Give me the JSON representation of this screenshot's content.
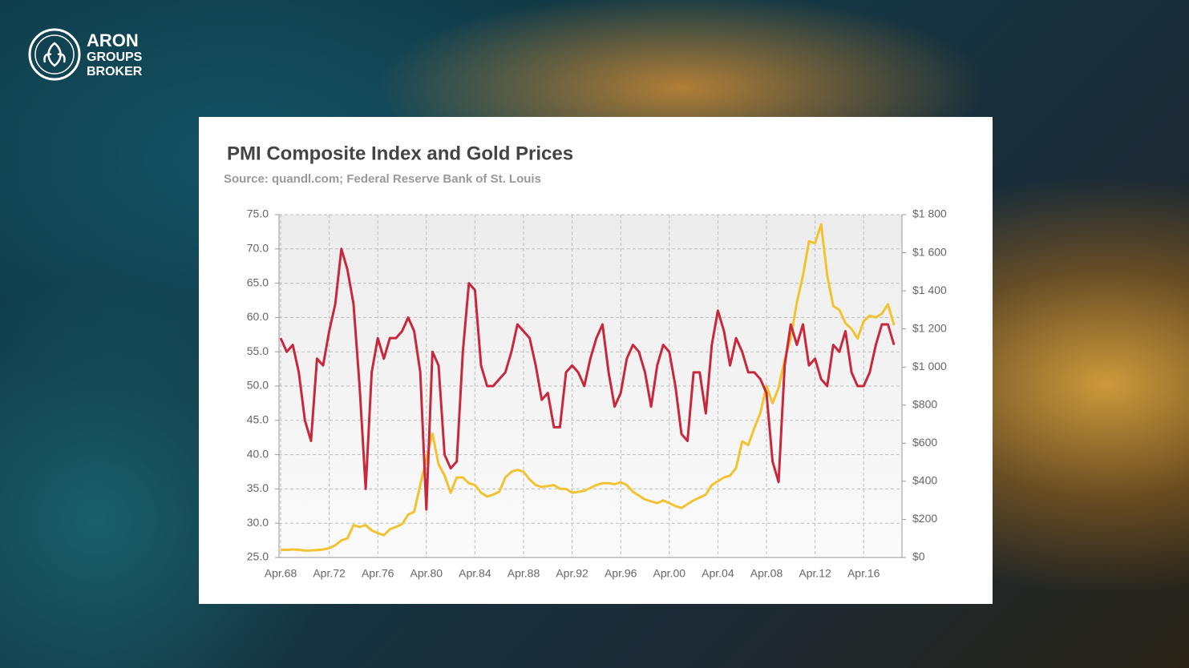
{
  "logo": {
    "line1": "ARON",
    "line2": "GROUPS",
    "line3": "BROKER"
  },
  "chart_data": {
    "type": "line",
    "title": "PMI Composite Index and Gold Prices",
    "subtitle": "Source: quandl.com; Federal Reserve Bank of St. Louis",
    "categories": [
      "Apr.68",
      null,
      null,
      null,
      null,
      null,
      null,
      null,
      "Apr.72",
      null,
      null,
      null,
      null,
      null,
      null,
      null,
      "Apr.76",
      null,
      null,
      null,
      null,
      null,
      null,
      null,
      "Apr.80",
      null,
      null,
      null,
      null,
      null,
      null,
      null,
      "Apr.84",
      null,
      null,
      null,
      null,
      null,
      null,
      null,
      "Apr.88",
      null,
      null,
      null,
      null,
      null,
      null,
      null,
      "Apr.92",
      null,
      null,
      null,
      null,
      null,
      null,
      null,
      "Apr.96",
      null,
      null,
      null,
      null,
      null,
      null,
      null,
      "Apr.00",
      null,
      null,
      null,
      null,
      null,
      null,
      null,
      "Apr.04",
      null,
      null,
      null,
      null,
      null,
      null,
      null,
      "Apr.08",
      null,
      null,
      null,
      null,
      null,
      null,
      null,
      "Apr.12",
      null,
      null,
      null,
      null,
      null,
      null,
      null,
      "Apr.16",
      null,
      null,
      null,
      null,
      null
    ],
    "series": [
      {
        "color": "#c8283c",
        "axis": "y",
        "values": [
          57,
          55,
          56,
          52,
          45,
          42,
          54,
          53,
          58,
          62,
          70,
          67,
          62,
          50,
          35,
          52,
          57,
          54,
          57,
          57,
          58,
          60,
          58,
          52,
          32,
          55,
          53,
          40,
          38,
          39,
          55,
          65,
          64,
          53,
          50,
          50,
          51,
          52,
          55,
          59,
          58,
          57,
          53,
          48,
          49,
          44,
          44,
          52,
          53,
          52,
          50,
          54,
          57,
          59,
          52,
          47,
          49,
          54,
          56,
          55,
          52,
          47,
          53,
          56,
          55,
          50,
          43,
          42,
          52,
          52,
          46,
          56,
          61,
          58,
          53,
          57,
          55,
          52,
          52,
          51,
          49,
          39,
          36,
          53,
          59,
          56,
          59,
          53,
          54,
          51,
          50,
          56,
          55,
          58,
          52,
          50,
          50,
          52,
          56,
          59,
          59,
          56
        ]
      },
      {
        "color": "#f2c231",
        "axis": "y2",
        "values": [
          40,
          40,
          42,
          40,
          36,
          37,
          39,
          42,
          49,
          64,
          90,
          100,
          170,
          160,
          170,
          142,
          128,
          117,
          148,
          160,
          175,
          225,
          240,
          380,
          520,
          650,
          490,
          430,
          340,
          420,
          420,
          390,
          380,
          340,
          320,
          330,
          345,
          420,
          450,
          460,
          450,
          410,
          380,
          370,
          375,
          380,
          360,
          360,
          340,
          345,
          350,
          365,
          380,
          390,
          390,
          385,
          395,
          380,
          345,
          325,
          305,
          295,
          285,
          300,
          285,
          270,
          260,
          280,
          300,
          315,
          330,
          380,
          400,
          420,
          430,
          470,
          610,
          590,
          680,
          760,
          900,
          810,
          890,
          1040,
          1150,
          1340,
          1480,
          1660,
          1650,
          1750,
          1480,
          1320,
          1300,
          1230,
          1200,
          1150,
          1240,
          1270,
          1260,
          1280,
          1330,
          1220
        ]
      }
    ],
    "ylim": [
      25,
      75
    ],
    "yticks": [
      {
        "value": 25,
        "label": "25.0"
      },
      {
        "value": 30,
        "label": "30.0"
      },
      {
        "value": 35,
        "label": "35.0"
      },
      {
        "value": 40,
        "label": "40.0"
      },
      {
        "value": 45,
        "label": "45.0"
      },
      {
        "value": 50,
        "label": "50.0"
      },
      {
        "value": 55,
        "label": "55.0"
      },
      {
        "value": 60,
        "label": "60.0"
      },
      {
        "value": 65,
        "label": "65.0"
      },
      {
        "value": 70,
        "label": "70.0"
      },
      {
        "value": 75,
        "label": "75.0"
      }
    ],
    "y2lim": [
      0,
      1800
    ],
    "y2ticks": [
      {
        "value": 0,
        "label": "$0"
      },
      {
        "value": 200,
        "label": "$200"
      },
      {
        "value": 400,
        "label": "$400"
      },
      {
        "value": 600,
        "label": "$600"
      },
      {
        "value": 800,
        "label": "$800"
      },
      {
        "value": 1000,
        "label": "$1 000"
      },
      {
        "value": 1200,
        "label": "$1 200"
      },
      {
        "value": 1400,
        "label": "$1 400"
      },
      {
        "value": 1600,
        "label": "$1 600"
      },
      {
        "value": 1800,
        "label": "$1 800"
      }
    ],
    "grid": true
  }
}
